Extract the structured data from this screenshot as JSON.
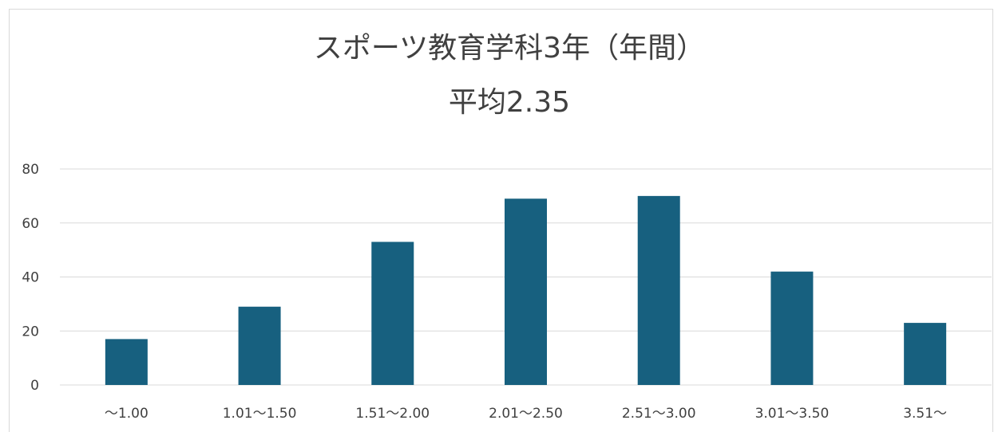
{
  "chart_data": {
    "type": "bar",
    "title": "スポーツ教育学科3年（年間）",
    "subtitle": "平均2.35",
    "categories": [
      "～1.00",
      "1.01～1.50",
      "1.51～2.00",
      "2.01～2.50",
      "2.51～3.00",
      "3.01～3.50",
      "3.51～"
    ],
    "values": [
      17,
      29,
      53,
      69,
      70,
      42,
      23
    ],
    "ylim": [
      0,
      80
    ],
    "yticks": [
      0,
      20,
      40,
      60,
      80
    ],
    "grid": true,
    "legend": "none",
    "bar_color": "#17607f"
  }
}
